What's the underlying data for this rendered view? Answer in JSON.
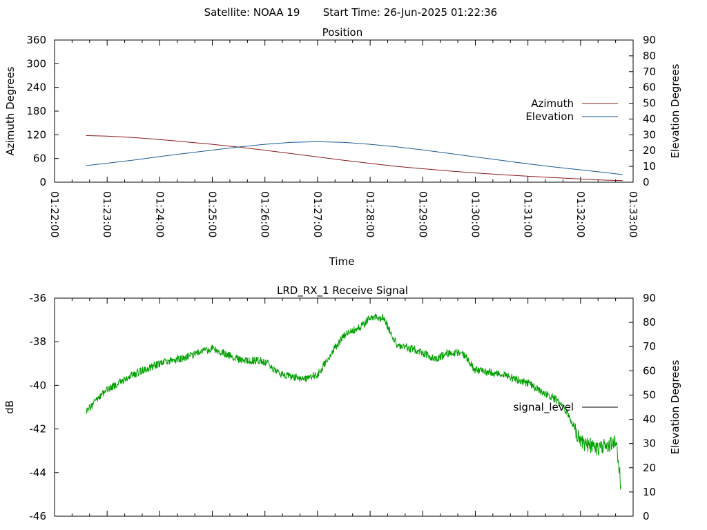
{
  "header": {
    "satellite_label": "Satellite: NOAA 19",
    "start_time_label": "Start Time: 26-Jun-2025 01:22:36"
  },
  "chart_data": [
    {
      "type": "line",
      "title": "Position",
      "xlabel": "Time",
      "ylabel": "Azimuth Degrees",
      "y2label": "Elevation Degrees",
      "xlim": [
        "01:22:00",
        "01:33:00"
      ],
      "xticks": [
        "01:22:00",
        "01:23:00",
        "01:24:00",
        "01:25:00",
        "01:26:00",
        "01:27:00",
        "01:28:00",
        "01:29:00",
        "01:30:00",
        "01:31:00",
        "01:32:00",
        "01:33:00"
      ],
      "ylim": [
        0,
        360
      ],
      "yticks": [
        0,
        60,
        120,
        180,
        240,
        300,
        360
      ],
      "y2lim": [
        0,
        90
      ],
      "y2ticks": [
        0,
        10,
        20,
        30,
        40,
        50,
        60,
        70,
        80,
        90
      ],
      "grid": false,
      "legend_position": "right",
      "series": [
        {
          "name": "Azimuth",
          "axis": "y",
          "color": "#8b1a1a",
          "x": [
            "01:22:36",
            "01:23:00",
            "01:23:30",
            "01:24:00",
            "01:24:30",
            "01:25:00",
            "01:25:30",
            "01:26:00",
            "01:26:30",
            "01:27:00",
            "01:27:30",
            "01:28:00",
            "01:28:30",
            "01:29:00",
            "01:29:30",
            "01:30:00",
            "01:30:30",
            "01:31:00",
            "01:31:30",
            "01:32:00",
            "01:32:30",
            "01:32:48"
          ],
          "y": [
            118,
            116.5,
            113,
            108,
            102,
            96,
            89,
            81,
            72.5,
            64,
            55.5,
            47.5,
            40,
            34,
            28.5,
            23.5,
            19,
            15,
            11.5,
            8,
            5,
            4
          ]
        },
        {
          "name": "Elevation",
          "axis": "y2",
          "color": "#1a5a96",
          "x": [
            "01:22:36",
            "01:23:00",
            "01:23:30",
            "01:24:00",
            "01:24:30",
            "01:25:00",
            "01:25:30",
            "01:26:00",
            "01:26:30",
            "01:27:00",
            "01:27:30",
            "01:28:00",
            "01:28:30",
            "01:29:00",
            "01:29:30",
            "01:30:00",
            "01:30:30",
            "01:31:00",
            "01:31:30",
            "01:32:00",
            "01:32:30",
            "01:32:48"
          ],
          "y": [
            10.5,
            12,
            14,
            16.2,
            18.3,
            20.3,
            22.3,
            24,
            25.2,
            25.6,
            25.2,
            24,
            22.4,
            20.4,
            18.2,
            16,
            13.8,
            11.6,
            9.6,
            7.8,
            6,
            4.8
          ]
        }
      ]
    },
    {
      "type": "line",
      "title": "LRD_RX_1 Receive Signal",
      "ylabel": "dB",
      "y2label": "Elevation Degrees",
      "xlim": [
        "01:22:00",
        "01:33:00"
      ],
      "ylim": [
        -46,
        -36
      ],
      "yticks": [
        -46,
        -44,
        -42,
        -40,
        -38,
        -36
      ],
      "y2lim": [
        0,
        90
      ],
      "y2ticks": [
        0,
        10,
        20,
        30,
        40,
        50,
        60,
        70,
        80,
        90
      ],
      "grid": false,
      "legend_position": "right",
      "series": [
        {
          "name": "signal_level",
          "axis": "y",
          "color": "#00a000",
          "x": [
            "01:22:36",
            "01:23:00",
            "01:23:30",
            "01:24:00",
            "01:24:30",
            "01:25:00",
            "01:25:30",
            "01:26:00",
            "01:26:15",
            "01:26:30",
            "01:26:45",
            "01:27:00",
            "01:27:15",
            "01:27:30",
            "01:27:50",
            "01:28:00",
            "01:28:15",
            "01:28:30",
            "01:28:45",
            "01:29:00",
            "01:29:15",
            "01:29:30",
            "01:29:45",
            "01:30:00",
            "01:30:30",
            "01:31:00",
            "01:31:30",
            "01:31:45",
            "01:32:00",
            "01:32:20",
            "01:32:40",
            "01:32:45",
            "01:32:46"
          ],
          "y": [
            -41.2,
            -40.2,
            -39.5,
            -39.0,
            -38.7,
            -38.3,
            -38.8,
            -38.9,
            -39.4,
            -39.6,
            -39.7,
            -39.5,
            -38.6,
            -37.7,
            -37.3,
            -36.9,
            -36.9,
            -38.1,
            -38.3,
            -38.5,
            -38.8,
            -38.5,
            -38.5,
            -39.3,
            -39.5,
            -39.9,
            -40.6,
            -41.2,
            -42.6,
            -42.9,
            -42.6,
            -44.0,
            -44.9
          ]
        }
      ]
    }
  ]
}
